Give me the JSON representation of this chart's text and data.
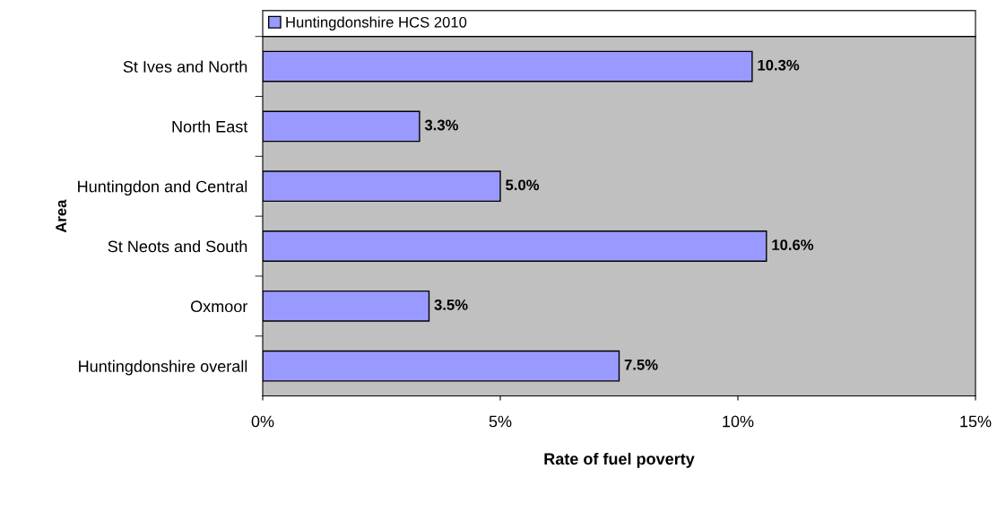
{
  "chart_data": {
    "type": "bar",
    "orientation": "horizontal",
    "xlabel": "Rate of fuel poverty",
    "ylabel": "Area",
    "categories": [
      "St Ives and North",
      "North East",
      "Huntingdon and Central",
      "St Neots and South",
      "Oxmoor",
      "Huntingdonshire overall"
    ],
    "series": [
      {
        "name": "Huntingdonshire HCS 2010",
        "color": "#9999ff",
        "values": [
          10.3,
          3.3,
          5.0,
          10.6,
          3.5,
          7.5
        ]
      }
    ],
    "value_labels": [
      "10.3%",
      "3.3%",
      "5.0%",
      "10.6%",
      "3.5%",
      "7.5%"
    ],
    "xlim": [
      0,
      15
    ],
    "xticks": [
      {
        "value": 0,
        "label": "0%"
      },
      {
        "value": 5,
        "label": "5%"
      },
      {
        "value": 10,
        "label": "10%"
      },
      {
        "value": 15,
        "label": "15%"
      }
    ],
    "grid": false,
    "legend": "top"
  }
}
